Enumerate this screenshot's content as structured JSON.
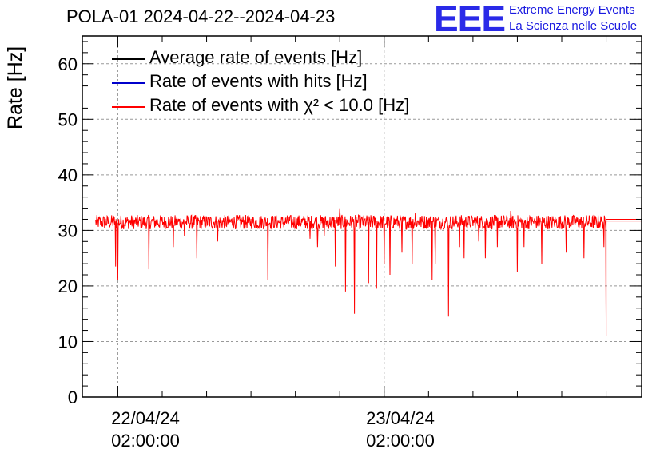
{
  "title": "POLA-01 2024-04-22--2024-04-23",
  "logo": {
    "text": "EEE",
    "line1": "Extreme Energy Events",
    "line2": "La Scienza nelle Scuole"
  },
  "colors": {
    "average": "#000000",
    "hits": "#0000cc",
    "chi2": "#ff0000",
    "logo": "#2a2ae8"
  },
  "chart_data": {
    "type": "line",
    "ylabel": "Rate [Hz]",
    "ylim": [
      0,
      65
    ],
    "y_ticks": [
      "0",
      "10",
      "20",
      "30",
      "40",
      "50",
      "60"
    ],
    "x_unit": "hours since 2024-04-22 00:00",
    "xlim": [
      -1.2,
      49.2
    ],
    "x_ticks": [
      {
        "x": 2,
        "date": "22/04/24",
        "time": "02:00:00"
      },
      {
        "x": 26,
        "date": "23/04/24",
        "time": "02:00:00"
      }
    ],
    "grid": true,
    "legend_position": "top-left",
    "series": [
      {
        "name": "Average rate of events [Hz]",
        "color": "#000000",
        "mean": 31.5
      },
      {
        "name": "Rate of events with hits [Hz]",
        "color": "#0000cc",
        "mean": 31.5
      },
      {
        "name": "Rate of events with χ² < 10.0 [Hz]",
        "color": "#ff0000",
        "mean": 31.5,
        "dips": [
          [
            1.8,
            23.5
          ],
          [
            2.0,
            21.0
          ],
          [
            4.8,
            23.0
          ],
          [
            7.0,
            27.0
          ],
          [
            8.0,
            29.0
          ],
          [
            9.1,
            25.0
          ],
          [
            11.0,
            28.0
          ],
          [
            15.5,
            21.0
          ],
          [
            19.3,
            28.5
          ],
          [
            20.0,
            27.0
          ],
          [
            20.6,
            29.0
          ],
          [
            21.6,
            23.5
          ],
          [
            22.5,
            19.0
          ],
          [
            23.3,
            15.0
          ],
          [
            24.6,
            20.5
          ],
          [
            25.3,
            19.5
          ],
          [
            26.0,
            24.0
          ],
          [
            26.5,
            22.0
          ],
          [
            27.6,
            26.0
          ],
          [
            28.5,
            24.0
          ],
          [
            30.3,
            21.0
          ],
          [
            30.6,
            24.0
          ],
          [
            31.8,
            14.5
          ],
          [
            32.8,
            27.0
          ],
          [
            33.2,
            25.0
          ],
          [
            34.5,
            28.0
          ],
          [
            35.1,
            25.0
          ],
          [
            36.2,
            27.0
          ],
          [
            38.0,
            22.5
          ],
          [
            38.6,
            27.0
          ],
          [
            40.2,
            24.0
          ],
          [
            42.4,
            26.0
          ],
          [
            44.0,
            25.0
          ],
          [
            45.8,
            27.0
          ],
          [
            46.0,
            11.0
          ]
        ],
        "spikes": [
          [
            22.0,
            34.0
          ],
          [
            28.8,
            33.2
          ],
          [
            37.4,
            33.5
          ],
          [
            46.1,
            34.0
          ]
        ],
        "data_end_x": 46.0,
        "flat_tail_y": 32.0
      }
    ]
  }
}
